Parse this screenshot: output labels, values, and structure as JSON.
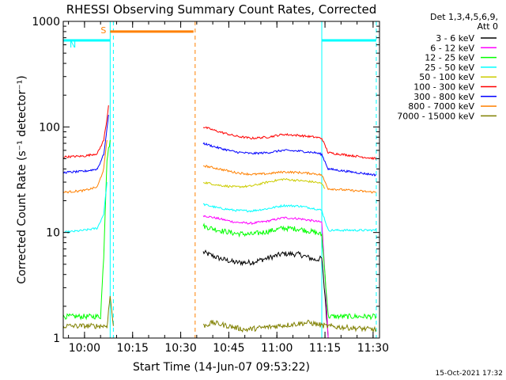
{
  "chart_data": {
    "type": "line",
    "title": "RHESSI Observing Summary Count Rates, Corrected",
    "xlabel": "Start Time (14-Jun-07 09:53:22)",
    "ylabel": "Corrected Count Rate (s⁻¹ detector⁻¹)",
    "yscale": "log",
    "xlim": [
      "09:53:22",
      "11:32:00"
    ],
    "ylim": [
      1,
      1000
    ],
    "x_ticks": [
      "10:00",
      "10:15",
      "10:30",
      "10:45",
      "11:00",
      "11:15",
      "11:30"
    ],
    "y_ticks": [
      "1",
      "10",
      "100",
      "1000"
    ],
    "legend_header": [
      "Det 1,3,4,5,6,9,",
      "Att 0"
    ],
    "legend_position": "outside-right",
    "footer_timestamp": "15-Oct-2021 17:32",
    "series": [
      {
        "name": "3 - 6 keV",
        "color": "#000000",
        "segments": [
          {
            "x": [
              "10:37",
              "10:42",
              "10:47",
              "10:52",
              "10:57",
              "11:02",
              "11:07",
              "11:12",
              "11:14",
              "11:15",
              "11:16"
            ],
            "y": [
              6.5,
              5.7,
              5.2,
              5.2,
              5.7,
              6.3,
              6.2,
              5.5,
              5.7,
              2.5,
              1
            ]
          }
        ]
      },
      {
        "name": "6 - 12 keV",
        "color": "#ff00ff",
        "segments": [
          {
            "x": [
              "10:37",
              "10:42",
              "10:47",
              "10:52",
              "10:57",
              "11:02",
              "11:07",
              "11:12",
              "11:14",
              "11:15",
              "11:16"
            ],
            "y": [
              14.5,
              13.5,
              12.5,
              12.2,
              12.8,
              13.8,
              13.5,
              12.8,
              12.5,
              4,
              1
            ]
          }
        ]
      },
      {
        "name": "12 - 25 keV",
        "color": "#00ff00",
        "segments": [
          {
            "x": [
              "09:53:22",
              "10:05",
              "10:06",
              "10:06:40",
              "10:07",
              "10:08"
            ],
            "y": [
              1.6,
              1.6,
              6,
              25,
              50,
              75
            ]
          },
          {
            "x": [
              "10:37",
              "10:42",
              "10:47",
              "10:52",
              "10:57",
              "11:02",
              "11:07",
              "11:12",
              "11:14",
              "11:15",
              "11:16",
              "11:31"
            ],
            "y": [
              11.5,
              10.5,
              9.8,
              9.6,
              10.2,
              11,
              10.8,
              10,
              9.5,
              4,
              1.6,
              1.6
            ]
          }
        ]
      },
      {
        "name": "25 - 50 keV",
        "color": "#00ffff",
        "segments": [
          {
            "x": [
              "09:53:22",
              "10:00",
              "10:04",
              "10:06",
              "10:07"
            ],
            "y": [
              10,
              10.5,
              11,
              15,
              30
            ]
          },
          {
            "x": [
              "10:37",
              "10:42",
              "10:47",
              "10:52",
              "10:57",
              "11:02",
              "11:07",
              "11:12",
              "11:14",
              "11:16",
              "11:31"
            ],
            "y": [
              18.5,
              17,
              16.2,
              16,
              16.8,
              18,
              17.8,
              16.8,
              16.2,
              10.5,
              10.5
            ]
          }
        ]
      },
      {
        "name": "50 - 100 keV",
        "color": "#cccc00",
        "segments": [
          {
            "x": [
              "10:37",
              "10:42",
              "10:47",
              "10:52",
              "10:57",
              "11:02",
              "11:07",
              "11:12",
              "11:14",
              "11:15"
            ],
            "y": [
              30,
              28,
              27,
              27.5,
              30,
              32,
              31,
              30,
              29,
              26
            ]
          }
        ]
      },
      {
        "name": "100 - 300 keV",
        "color": "#ff0000",
        "segments": [
          {
            "x": [
              "09:53:22",
              "10:00",
              "10:04",
              "10:06",
              "10:07",
              "10:07:30"
            ],
            "y": [
              52,
              53,
              56,
              75,
              120,
              160
            ]
          },
          {
            "x": [
              "10:37",
              "10:42",
              "10:47",
              "10:52",
              "10:57",
              "11:02",
              "11:07",
              "11:12",
              "11:14",
              "11:16",
              "11:31"
            ],
            "y": [
              100,
              90,
              82,
              78,
              80,
              85,
              83,
              80,
              78,
              57,
              50
            ]
          }
        ]
      },
      {
        "name": "300 - 800 keV",
        "color": "#0000ff",
        "segments": [
          {
            "x": [
              "09:53:22",
              "10:00",
              "10:04",
              "10:06",
              "10:07",
              "10:07:30"
            ],
            "y": [
              37,
              38,
              40,
              55,
              95,
              130
            ]
          },
          {
            "x": [
              "10:37",
              "10:42",
              "10:47",
              "10:52",
              "10:57",
              "11:02",
              "11:07",
              "11:12",
              "11:14",
              "11:16",
              "11:31"
            ],
            "y": [
              70,
              63,
              58,
              56,
              57,
              60,
              59,
              57,
              55,
              40,
              35
            ]
          }
        ]
      },
      {
        "name": "800 - 7000 keV",
        "color": "#ff8000",
        "segments": [
          {
            "x": [
              "09:53:22",
              "10:00",
              "10:04",
              "10:06",
              "10:07"
            ],
            "y": [
              24,
              25,
              27,
              40,
              75
            ]
          },
          {
            "x": [
              "10:37",
              "10:42",
              "10:47",
              "10:52",
              "10:57",
              "11:02",
              "11:07",
              "11:12",
              "11:14",
              "11:16",
              "11:31"
            ],
            "y": [
              43,
              40,
              37,
              35.5,
              36,
              37.5,
              37,
              36,
              35,
              26,
              24
            ]
          }
        ]
      },
      {
        "name": "7000 - 15000 keV",
        "color": "#808000",
        "segments": [
          {
            "x": [
              "09:53:22",
              "10:07",
              "10:08",
              "10:09"
            ],
            "y": [
              1.3,
              1.3,
              2.5,
              1.3
            ]
          },
          {
            "x": [
              "10:37",
              "10:40",
              "10:50",
              "11:00",
              "11:10",
              "11:15",
              "11:31"
            ],
            "y": [
              1.3,
              1.4,
              1.2,
              1.3,
              1.4,
              1.3,
              1.2
            ]
          }
        ]
      }
    ],
    "annotations": [
      {
        "label": "S",
        "color": "#ff8000",
        "type": "bar",
        "x_start": "10:08",
        "x_end": "10:34",
        "y": 800
      },
      {
        "label": "N",
        "color": "#00ffff",
        "type": "bar",
        "x_start": "09:53:22",
        "x_end": "10:08",
        "y": 660
      },
      {
        "label": "",
        "color": "#00ffff",
        "type": "bar",
        "x_start": "11:14",
        "x_end": "11:31",
        "y": 660
      }
    ],
    "vertical_lines": [
      {
        "x": "10:08",
        "color": "#00ffff",
        "style": "solid"
      },
      {
        "x": "10:09",
        "color": "#00ffff",
        "style": "dashed"
      },
      {
        "x": "10:34:30",
        "color": "#ff8000",
        "style": "dashed"
      },
      {
        "x": "11:14",
        "color": "#00ffff",
        "style": "solid"
      },
      {
        "x": "11:31",
        "color": "#00ffff",
        "style": "dashed"
      },
      {
        "x": "09:53:22",
        "color": "#00ffff",
        "style": "solid"
      }
    ]
  }
}
